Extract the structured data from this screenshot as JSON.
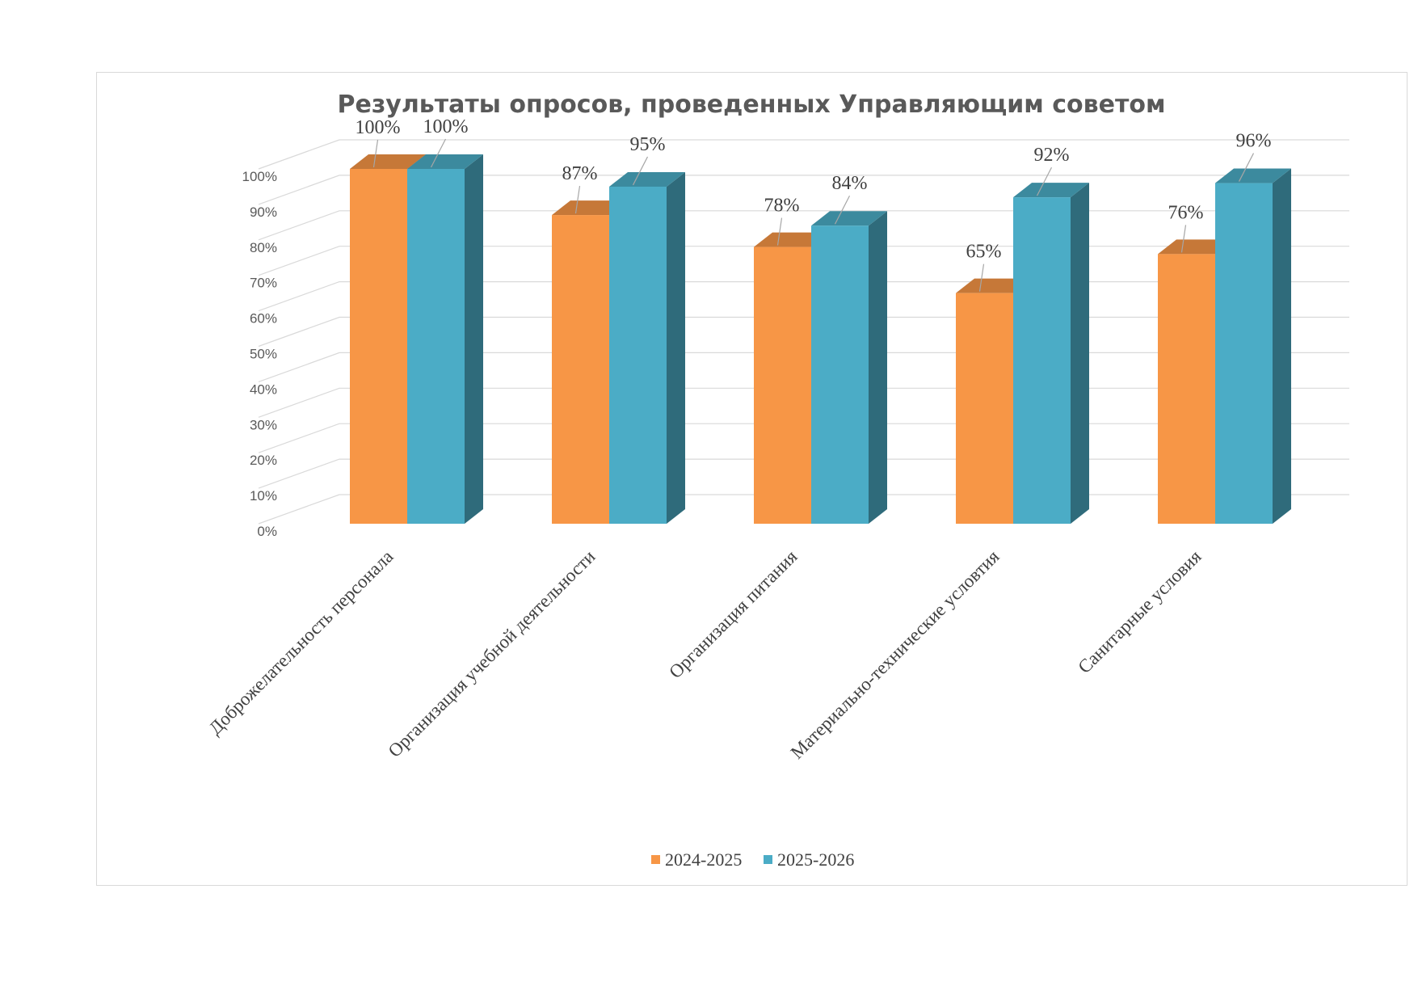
{
  "chart_data": {
    "type": "bar",
    "title": "Результаты опросов, проведенных Управляющим советом",
    "categories": [
      "Доброжелательность персонала",
      "Организация учебной деятельности",
      "Организация питания",
      "Материально-технические условтия",
      "Санитарные условия"
    ],
    "series": [
      {
        "name": "2024-2025",
        "values": [
          100,
          87,
          78,
          65,
          76
        ],
        "color": "#F79646"
      },
      {
        "name": "2025-2026",
        "values": [
          100,
          95,
          84,
          92,
          96
        ],
        "color": "#4BACC6"
      }
    ],
    "data_labels": [
      [
        "100%",
        "87%",
        "78%",
        "65%",
        "76%"
      ],
      [
        "100%",
        "95%",
        "84%",
        "92%",
        "96%"
      ]
    ],
    "y_ticks": [
      "0%",
      "10%",
      "20%",
      "30%",
      "40%",
      "50%",
      "60%",
      "70%",
      "80%",
      "90%",
      "100%"
    ],
    "ylim": [
      0,
      100
    ],
    "grid": true,
    "style": "3d-clustered-column",
    "legend_position": "bottom"
  }
}
